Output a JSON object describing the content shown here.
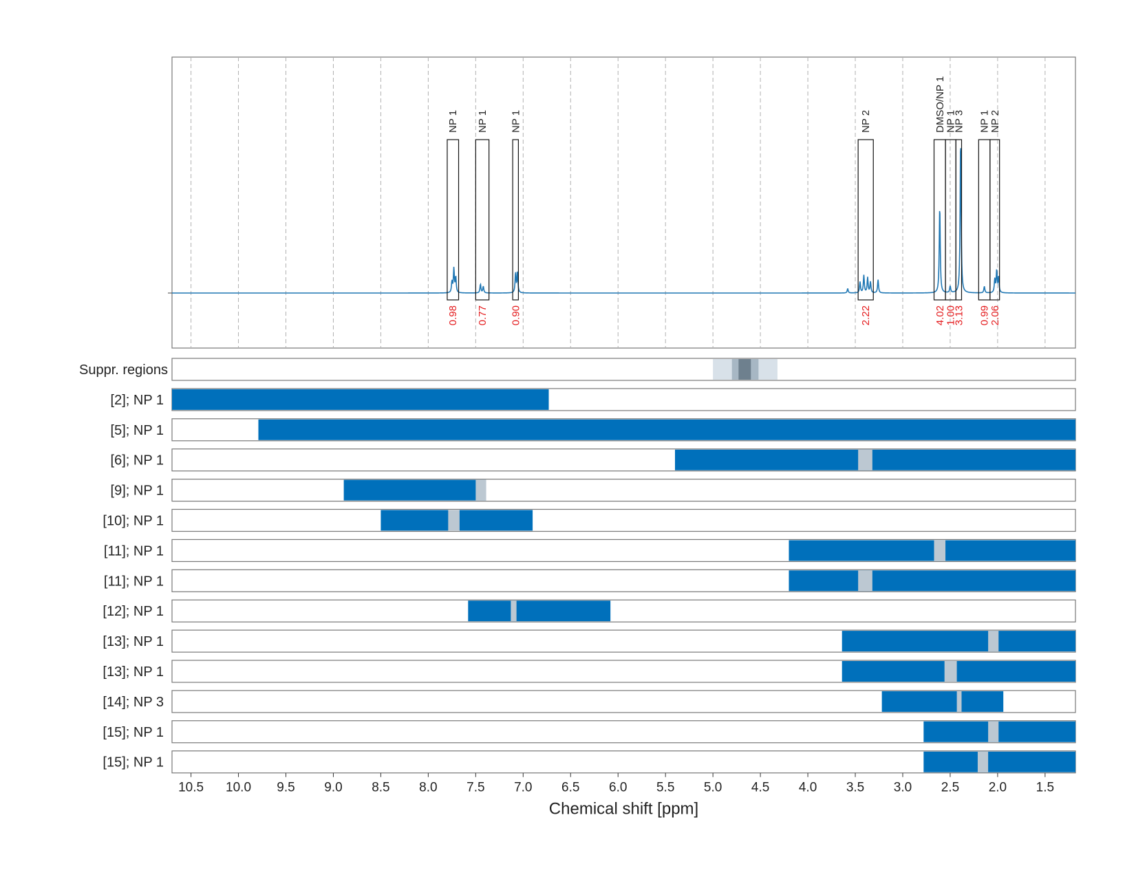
{
  "chart_data": {
    "type": "nmr-spectrum-with-range-bars",
    "xlabel": "Chemical shift [ppm]",
    "xlim": [
      10.7,
      1.18
    ],
    "x_ticks": [
      10.5,
      10.0,
      9.5,
      9.0,
      8.5,
      8.0,
      7.5,
      7.0,
      6.5,
      6.0,
      5.5,
      5.0,
      4.5,
      4.0,
      3.5,
      3.0,
      2.5,
      2.0,
      1.5
    ],
    "x_tick_labels": [
      "10.5",
      "10.0",
      "9.5",
      "9.0",
      "8.5",
      "8.0",
      "7.5",
      "7.0",
      "6.5",
      "6.0",
      "5.5",
      "5.0",
      "4.5",
      "4.0",
      "3.5",
      "3.0",
      "2.5",
      "2.0",
      "1.5"
    ],
    "grid": "vertical dashed",
    "colors": {
      "spectrum": "#1f77b4",
      "range_bar": "#0070bb",
      "gap": "#bcc8d2",
      "integral_text": "#e41a1c",
      "suppr_light": "#d8e1e9",
      "suppr_mid": "#a7b7c4",
      "suppr_dark": "#6e808e",
      "frame": "#777777"
    },
    "spectrum_peaks": [
      {
        "ppm": 7.73,
        "height": 0.11
      },
      {
        "ppm": 7.71,
        "height": 0.07
      },
      {
        "ppm": 7.75,
        "height": 0.05
      },
      {
        "ppm": 7.45,
        "height": 0.04
      },
      {
        "ppm": 7.42,
        "height": 0.03
      },
      {
        "ppm": 7.08,
        "height": 0.09
      },
      {
        "ppm": 7.06,
        "height": 0.09
      },
      {
        "ppm": 3.58,
        "height": 0.02
      },
      {
        "ppm": 3.45,
        "height": 0.05
      },
      {
        "ppm": 3.41,
        "height": 0.08
      },
      {
        "ppm": 3.37,
        "height": 0.07
      },
      {
        "ppm": 3.34,
        "height": 0.05
      },
      {
        "ppm": 3.26,
        "height": 0.06
      },
      {
        "ppm": 2.61,
        "height": 0.4
      },
      {
        "ppm": 2.5,
        "height": 0.03
      },
      {
        "ppm": 2.39,
        "height": 0.71
      },
      {
        "ppm": 2.14,
        "height": 0.03
      },
      {
        "ppm": 2.03,
        "height": 0.06
      },
      {
        "ppm": 2.01,
        "height": 0.1
      },
      {
        "ppm": 1.99,
        "height": 0.07
      }
    ],
    "annotations": [
      {
        "label": "NP 1",
        "range": [
          7.8,
          7.68
        ],
        "integral": "0.98"
      },
      {
        "label": "NP 1",
        "range": [
          7.5,
          7.36
        ],
        "integral": "0.77"
      },
      {
        "label": "NP 1",
        "range": [
          7.11,
          7.05
        ],
        "integral": "0.90"
      },
      {
        "label": "NP 2",
        "range": [
          3.47,
          3.31
        ],
        "integral": "2.22"
      },
      {
        "label": "DMSO/NP 1",
        "range": [
          2.67,
          2.55
        ],
        "integral": "4.02"
      },
      {
        "label": "NP 1",
        "range": [
          2.55,
          2.44
        ],
        "integral": "1.00"
      },
      {
        "label": "NP 3",
        "range": [
          2.44,
          2.38
        ],
        "integral": "3.13"
      },
      {
        "label": "NP 1",
        "range": [
          2.2,
          2.08
        ],
        "integral": "0.99"
      },
      {
        "label": "NP 2",
        "range": [
          2.08,
          1.98
        ],
        "integral": "2.06"
      }
    ],
    "suppressed_regions": {
      "label": "Suppr. regions",
      "outer": [
        5.0,
        4.32
      ],
      "inner": [
        4.8,
        4.52
      ],
      "core": [
        4.73,
        4.6
      ]
    },
    "range_rows": [
      {
        "label": "[2]; NP 1",
        "range": [
          10.7,
          6.73
        ],
        "gap": null
      },
      {
        "label": "[5]; NP 1",
        "range": [
          9.79,
          1.18
        ],
        "gap": null
      },
      {
        "label": "[6]; NP 1",
        "range": [
          5.4,
          1.18
        ],
        "gap": [
          3.47,
          3.32
        ]
      },
      {
        "label": "[9]; NP 1",
        "range": [
          8.89,
          7.39
        ],
        "gap": [
          7.5,
          7.39
        ]
      },
      {
        "label": "[10]; NP 1",
        "range": [
          8.5,
          6.9
        ],
        "gap": [
          7.79,
          7.67
        ]
      },
      {
        "label": "[11]; NP 1",
        "range": [
          4.2,
          1.18
        ],
        "gap": [
          2.67,
          2.55
        ]
      },
      {
        "label": "[11]; NP 1",
        "range": [
          4.2,
          1.18
        ],
        "gap": [
          3.47,
          3.32
        ]
      },
      {
        "label": "[12]; NP 1",
        "range": [
          7.58,
          6.08
        ],
        "gap": [
          7.13,
          7.07
        ]
      },
      {
        "label": "[13]; NP 1",
        "range": [
          3.64,
          1.18
        ],
        "gap": [
          2.1,
          1.99
        ]
      },
      {
        "label": "[13]; NP 1",
        "range": [
          3.64,
          1.18
        ],
        "gap": [
          2.56,
          2.43
        ]
      },
      {
        "label": "[14]; NP 3",
        "range": [
          3.22,
          1.94
        ],
        "gap": [
          2.43,
          2.38
        ]
      },
      {
        "label": "[15]; NP 1",
        "range": [
          2.78,
          1.18
        ],
        "gap": [
          2.1,
          1.99
        ]
      },
      {
        "label": "[15]; NP 1",
        "range": [
          2.78,
          1.18
        ],
        "gap": [
          2.21,
          2.1
        ]
      }
    ]
  }
}
